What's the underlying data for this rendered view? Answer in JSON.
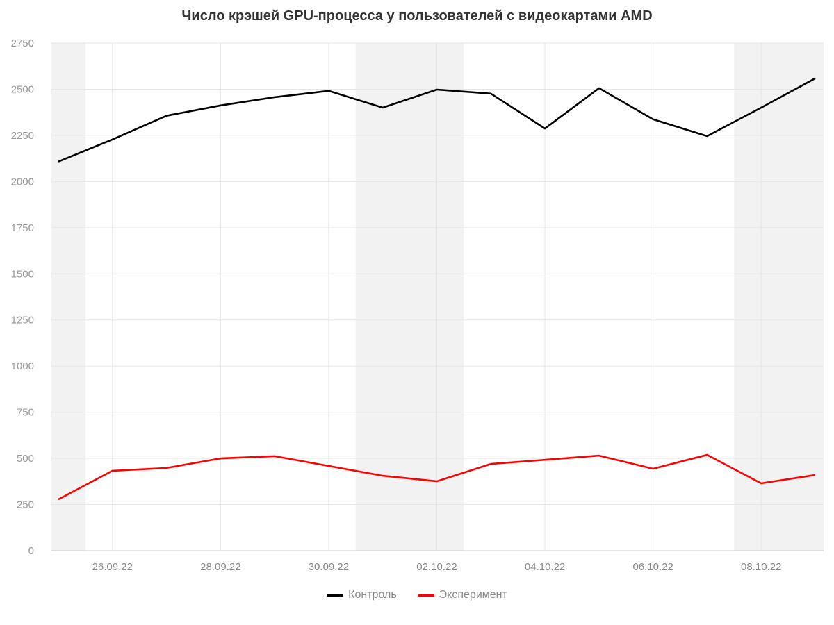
{
  "chart_data": {
    "type": "line",
    "title": "Число крэшей GPU-процесса у пользователей с видеокартами AMD",
    "xlabel": "",
    "ylabel": "",
    "ylim": [
      0,
      2750
    ],
    "yticks": [
      0,
      250,
      500,
      750,
      1000,
      1250,
      1500,
      1750,
      2000,
      2250,
      2500,
      2750
    ],
    "x": [
      "25.09.22",
      "26.09.22",
      "27.09.22",
      "28.09.22",
      "29.09.22",
      "30.09.22",
      "01.10.22",
      "02.10.22",
      "03.10.22",
      "04.10.22",
      "05.10.22",
      "06.10.22",
      "07.10.22",
      "08.10.22",
      "09.10.22"
    ],
    "xtick_labels": [
      "26.09.22",
      "28.09.22",
      "30.09.22",
      "02.10.22",
      "04.10.22",
      "06.10.22",
      "08.10.22"
    ],
    "grid": true,
    "legend_position": "bottom",
    "weekend_shading": [
      [
        "25.09.22",
        "25.09.22"
      ],
      [
        "01.10.22",
        "02.10.22"
      ],
      [
        "08.10.22",
        "09.10.22"
      ]
    ],
    "series": [
      {
        "name": "Контроль",
        "color": "#000000",
        "values": [
          2108,
          2228,
          2356,
          2412,
          2457,
          2491,
          2400,
          2498,
          2476,
          2287,
          2506,
          2337,
          2246,
          2400,
          2559
        ]
      },
      {
        "name": "Эксперимент",
        "color": "#ff0000",
        "values": [
          278,
          433,
          448,
          500,
          512,
          459,
          406,
          376,
          470,
          492,
          515,
          444,
          519,
          365,
          410
        ]
      }
    ]
  },
  "legend": {
    "items": [
      {
        "label": "Контроль",
        "color": "#000000"
      },
      {
        "label": "Эксперимент",
        "color": "#ff0000"
      }
    ]
  },
  "colors": {
    "grid": "#e6e6e6",
    "weekend": "#f2f2f2",
    "axis": "#cccccc"
  }
}
